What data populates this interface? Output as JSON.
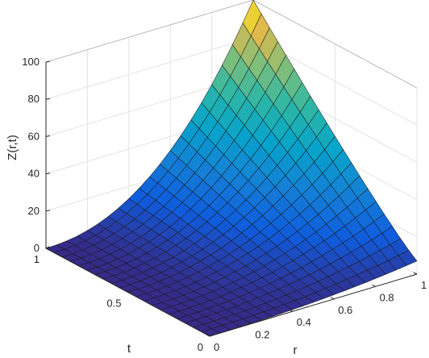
{
  "chart_data": {
    "type": "surface",
    "title": "",
    "xlabel": "r",
    "ylabel": "t",
    "zlabel": "Z(r,t)",
    "xlim": [
      0,
      1
    ],
    "ylim": [
      0,
      1
    ],
    "zlim": [
      0,
      100
    ],
    "x_ticks": [
      "0",
      "0.2",
      "0.4",
      "0.6",
      "0.8",
      "1"
    ],
    "y_ticks": [
      "0",
      "0.5",
      "1"
    ],
    "z_ticks": [
      "0",
      "20",
      "40",
      "60",
      "80",
      "100"
    ],
    "grid": true,
    "colormap": "parula",
    "grid_resolution": 21,
    "corner_values": [
      {
        "r": 0,
        "t": 0,
        "z": 0
      },
      {
        "r": 1,
        "t": 0,
        "z": 7
      },
      {
        "r": 0,
        "t": 1,
        "z": 0
      },
      {
        "r": 1,
        "t": 1,
        "z": 100
      }
    ]
  }
}
